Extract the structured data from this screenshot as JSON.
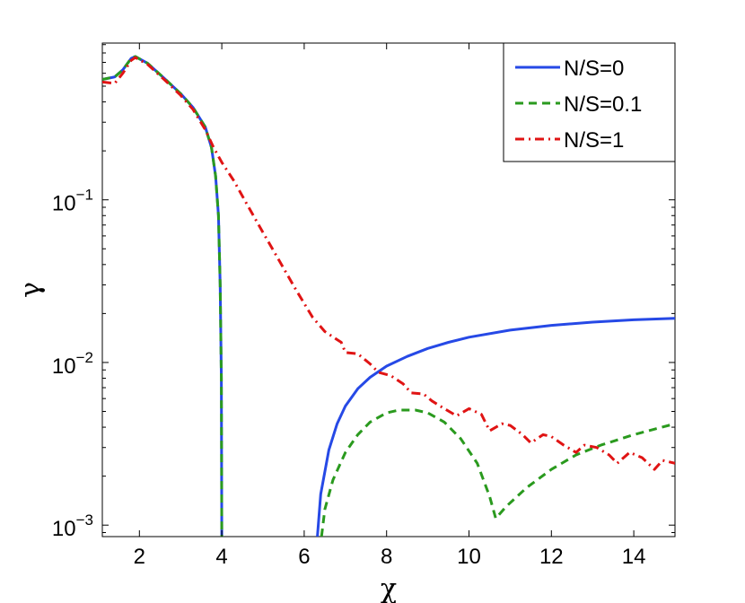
{
  "chart_data": {
    "type": "line",
    "xlabel": "χ",
    "ylabel": "γ",
    "x_scale": "linear",
    "y_scale": "log",
    "xlim": [
      1.1,
      15
    ],
    "ylim": [
      0.00085,
      0.92
    ],
    "x_ticks": [
      2,
      4,
      6,
      8,
      10,
      12,
      14
    ],
    "x_tick_labels": [
      "2",
      "4",
      "6",
      "8",
      "10",
      "12",
      "14"
    ],
    "y_ticks": [
      0.001,
      0.01,
      0.1
    ],
    "y_tick_labels": [
      {
        "base": "10",
        "exp": "−3"
      },
      {
        "base": "10",
        "exp": "−2"
      },
      {
        "base": "10",
        "exp": "−1"
      }
    ],
    "grid": false,
    "legend_position": "top-right",
    "series": [
      {
        "name": "N/S=0",
        "color": "#2649e6",
        "style": "solid",
        "segments": [
          [
            [
              1.1,
              0.55
            ],
            [
              1.4,
              0.57
            ],
            [
              1.6,
              0.63
            ],
            [
              1.8,
              0.74
            ],
            [
              1.9,
              0.76
            ],
            [
              2.2,
              0.69
            ],
            [
              2.6,
              0.56
            ],
            [
              3.0,
              0.45
            ],
            [
              3.3,
              0.37
            ],
            [
              3.6,
              0.28
            ],
            [
              3.75,
              0.21
            ],
            [
              3.85,
              0.14
            ],
            [
              3.92,
              0.08
            ],
            [
              3.96,
              0.03
            ],
            [
              3.99,
              0.008
            ],
            [
              4.0,
              0.00085
            ]
          ],
          [
            [
              6.32,
              0.00085
            ],
            [
              6.4,
              0.00155
            ],
            [
              6.6,
              0.0029
            ],
            [
              6.8,
              0.0042
            ],
            [
              7.0,
              0.0054
            ],
            [
              7.3,
              0.0069
            ],
            [
              7.6,
              0.0081
            ],
            [
              8.0,
              0.0095
            ],
            [
              8.5,
              0.0109
            ],
            [
              9.0,
              0.0122
            ],
            [
              9.5,
              0.0133
            ],
            [
              10.0,
              0.0143
            ],
            [
              11.0,
              0.0158
            ],
            [
              12.0,
              0.0169
            ],
            [
              13.0,
              0.0177
            ],
            [
              14.0,
              0.0183
            ],
            [
              15.0,
              0.0187
            ]
          ]
        ]
      },
      {
        "name": "N/S=0.1",
        "color": "#2a9a1e",
        "style": "dashed",
        "segments": [
          [
            [
              1.1,
              0.55
            ],
            [
              1.4,
              0.57
            ],
            [
              1.6,
              0.63
            ],
            [
              1.8,
              0.74
            ],
            [
              1.9,
              0.76
            ],
            [
              2.2,
              0.69
            ],
            [
              2.6,
              0.56
            ],
            [
              3.0,
              0.45
            ],
            [
              3.3,
              0.37
            ],
            [
              3.6,
              0.28
            ],
            [
              3.75,
              0.21
            ],
            [
              3.85,
              0.14
            ],
            [
              3.92,
              0.08
            ],
            [
              3.96,
              0.03
            ],
            [
              3.99,
              0.008
            ],
            [
              4.0,
              0.00085
            ]
          ],
          [
            [
              6.42,
              0.00085
            ],
            [
              6.5,
              0.00125
            ],
            [
              6.7,
              0.0019
            ],
            [
              7.0,
              0.0028
            ],
            [
              7.3,
              0.0036
            ],
            [
              7.6,
              0.0043
            ],
            [
              8.0,
              0.0049
            ],
            [
              8.3,
              0.0051
            ],
            [
              8.7,
              0.0051
            ],
            [
              9.0,
              0.0049
            ],
            [
              9.4,
              0.0043
            ],
            [
              9.8,
              0.0034
            ],
            [
              10.2,
              0.0024
            ],
            [
              10.5,
              0.0015
            ],
            [
              10.65,
              0.0011
            ],
            [
              10.9,
              0.0013
            ],
            [
              11.4,
              0.0017
            ],
            [
              12.0,
              0.0022
            ],
            [
              12.6,
              0.0027
            ],
            [
              13.2,
              0.0031
            ],
            [
              14.0,
              0.0036
            ],
            [
              15.0,
              0.0042
            ]
          ]
        ]
      },
      {
        "name": "N/S=1",
        "color": "#e01414",
        "style": "dashdot",
        "segments": [
          [
            [
              1.1,
              0.53
            ],
            [
              1.4,
              0.52
            ],
            [
              1.6,
              0.6
            ],
            [
              1.8,
              0.72
            ],
            [
              1.9,
              0.75
            ],
            [
              2.2,
              0.68
            ],
            [
              2.6,
              0.55
            ],
            [
              3.0,
              0.44
            ],
            [
              3.3,
              0.36
            ],
            [
              3.6,
              0.27
            ],
            [
              3.8,
              0.21
            ],
            [
              4.0,
              0.17
            ],
            [
              4.3,
              0.13
            ],
            [
              4.6,
              0.095
            ],
            [
              5.0,
              0.063
            ],
            [
              5.4,
              0.042
            ],
            [
              5.8,
              0.028
            ],
            [
              6.2,
              0.019
            ],
            [
              6.5,
              0.0155
            ],
            [
              6.9,
              0.0133
            ],
            [
              7.0,
              0.0115
            ],
            [
              7.3,
              0.0113
            ],
            [
              7.6,
              0.0098
            ],
            [
              7.8,
              0.0087
            ],
            [
              8.1,
              0.0083
            ],
            [
              8.4,
              0.0074
            ],
            [
              8.6,
              0.0065
            ],
            [
              8.9,
              0.0064
            ],
            [
              9.1,
              0.0058
            ],
            [
              9.4,
              0.0052
            ],
            [
              9.7,
              0.0047
            ],
            [
              10.0,
              0.0052
            ],
            [
              10.3,
              0.0048
            ],
            [
              10.5,
              0.0038
            ],
            [
              10.8,
              0.0042
            ],
            [
              11.0,
              0.0041
            ],
            [
              11.3,
              0.0036
            ],
            [
              11.5,
              0.0032
            ],
            [
              11.8,
              0.0036
            ],
            [
              12.0,
              0.0035
            ],
            [
              12.3,
              0.0031
            ],
            [
              12.6,
              0.0028
            ],
            [
              12.8,
              0.0031
            ],
            [
              13.1,
              0.003
            ],
            [
              13.4,
              0.0027
            ],
            [
              13.6,
              0.0024
            ],
            [
              13.9,
              0.0028
            ],
            [
              14.2,
              0.0026
            ],
            [
              14.5,
              0.0022
            ],
            [
              14.7,
              0.0025
            ],
            [
              15.0,
              0.0024
            ]
          ]
        ]
      }
    ]
  }
}
